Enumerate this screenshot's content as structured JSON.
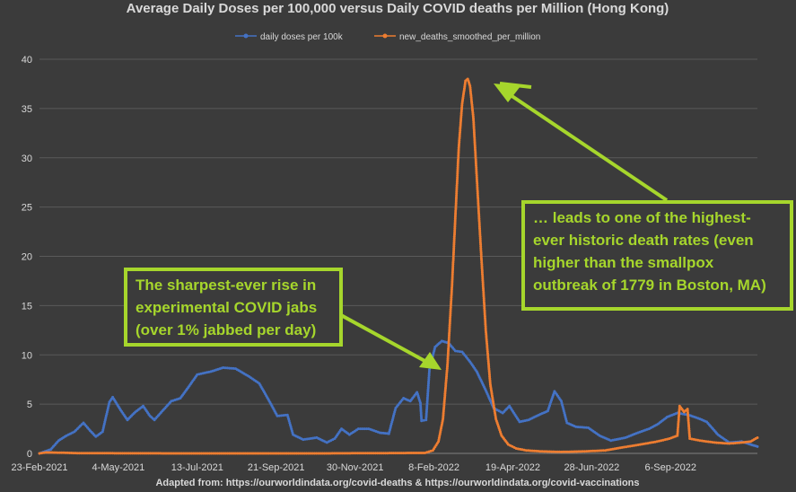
{
  "chart_data": {
    "type": "line",
    "title": "Average Daily Doses per 100,000 versus Daily COVID deaths per Million (Hong Kong)",
    "source": "Adapted from: https://ourworldindata.org/covid-deaths & https://ourworldindata.org/covid-vaccinations",
    "ylim": [
      0,
      40
    ],
    "yticks": [
      "0",
      "5",
      "10",
      "15",
      "20",
      "25",
      "30",
      "35",
      "40"
    ],
    "x_start": "2021-02-23",
    "x_end": "2022-11-22",
    "xtick_labels": [
      "23-Feb-2021",
      "4-May-2021",
      "13-Jul-2021",
      "21-Sep-2021",
      "30-Nov-2021",
      "8-Feb-2022",
      "19-Apr-2022",
      "28-Jun-2022",
      "6-Sep-2022"
    ],
    "grid": true,
    "legend_position": "top",
    "series": [
      {
        "name": "daily doses per 100k",
        "color": "#4472c4",
        "points": [
          [
            "2021-02-23",
            0.0
          ],
          [
            "2021-03-05",
            0.4
          ],
          [
            "2021-03-12",
            1.3
          ],
          [
            "2021-03-19",
            1.8
          ],
          [
            "2021-03-26",
            2.2
          ],
          [
            "2021-04-03",
            3.1
          ],
          [
            "2021-04-09",
            2.3
          ],
          [
            "2021-04-14",
            1.7
          ],
          [
            "2021-04-20",
            2.2
          ],
          [
            "2021-04-26",
            5.2
          ],
          [
            "2021-04-29",
            5.7
          ],
          [
            "2021-05-06",
            4.4
          ],
          [
            "2021-05-12",
            3.4
          ],
          [
            "2021-05-19",
            4.2
          ],
          [
            "2021-05-26",
            4.8
          ],
          [
            "2021-06-01",
            3.8
          ],
          [
            "2021-06-05",
            3.4
          ],
          [
            "2021-06-12",
            4.3
          ],
          [
            "2021-06-20",
            5.3
          ],
          [
            "2021-06-28",
            5.6
          ],
          [
            "2021-07-05",
            6.7
          ],
          [
            "2021-07-13",
            8.0
          ],
          [
            "2021-07-25",
            8.3
          ],
          [
            "2021-08-05",
            8.7
          ],
          [
            "2021-08-16",
            8.6
          ],
          [
            "2021-08-28",
            7.8
          ],
          [
            "2021-09-06",
            7.1
          ],
          [
            "2021-09-14",
            5.5
          ],
          [
            "2021-09-22",
            3.8
          ],
          [
            "2021-10-01",
            3.9
          ],
          [
            "2021-10-06",
            1.9
          ],
          [
            "2021-10-15",
            1.4
          ],
          [
            "2021-10-27",
            1.6
          ],
          [
            "2021-11-05",
            1.1
          ],
          [
            "2021-11-12",
            1.5
          ],
          [
            "2021-11-18",
            2.5
          ],
          [
            "2021-11-25",
            1.9
          ],
          [
            "2021-12-03",
            2.5
          ],
          [
            "2021-12-12",
            2.5
          ],
          [
            "2021-12-22",
            2.1
          ],
          [
            "2021-12-30",
            2.0
          ],
          [
            "2022-01-05",
            4.6
          ],
          [
            "2022-01-12",
            5.6
          ],
          [
            "2022-01-18",
            5.3
          ],
          [
            "2022-01-24",
            6.2
          ],
          [
            "2022-01-27",
            5.1
          ],
          [
            "2022-01-28",
            3.3
          ],
          [
            "2022-02-01",
            3.4
          ],
          [
            "2022-02-04",
            8.5
          ],
          [
            "2022-02-09",
            10.8
          ],
          [
            "2022-02-15",
            11.4
          ],
          [
            "2022-02-21",
            11.2
          ],
          [
            "2022-02-27",
            10.4
          ],
          [
            "2022-03-05",
            10.3
          ],
          [
            "2022-03-12",
            9.3
          ],
          [
            "2022-03-18",
            8.3
          ],
          [
            "2022-03-26",
            6.4
          ],
          [
            "2022-04-02",
            4.6
          ],
          [
            "2022-04-10",
            4.1
          ],
          [
            "2022-04-16",
            4.8
          ],
          [
            "2022-04-25",
            3.2
          ],
          [
            "2022-05-03",
            3.4
          ],
          [
            "2022-05-12",
            3.9
          ],
          [
            "2022-05-20",
            4.3
          ],
          [
            "2022-05-26",
            6.3
          ],
          [
            "2022-06-01",
            5.3
          ],
          [
            "2022-06-06",
            3.1
          ],
          [
            "2022-06-14",
            2.7
          ],
          [
            "2022-06-25",
            2.6
          ],
          [
            "2022-07-05",
            1.8
          ],
          [
            "2022-07-15",
            1.3
          ],
          [
            "2022-07-28",
            1.6
          ],
          [
            "2022-08-08",
            2.1
          ],
          [
            "2022-08-18",
            2.5
          ],
          [
            "2022-08-26",
            3.0
          ],
          [
            "2022-09-03",
            3.7
          ],
          [
            "2022-09-12",
            4.1
          ],
          [
            "2022-09-22",
            3.9
          ],
          [
            "2022-10-02",
            3.5
          ],
          [
            "2022-10-08",
            3.2
          ],
          [
            "2022-10-18",
            1.9
          ],
          [
            "2022-10-28",
            1.1
          ],
          [
            "2022-11-08",
            1.2
          ],
          [
            "2022-11-16",
            0.9
          ],
          [
            "2022-11-22",
            0.7
          ]
        ]
      },
      {
        "name": "new_deaths_smoothed_per_million",
        "color": "#ed7d31",
        "points": [
          [
            "2021-02-23",
            0.0
          ],
          [
            "2021-03-01",
            0.1
          ],
          [
            "2021-04-01",
            0.02
          ],
          [
            "2021-07-01",
            0.0
          ],
          [
            "2021-11-01",
            0.0
          ],
          [
            "2022-01-31",
            0.05
          ],
          [
            "2022-02-07",
            0.3
          ],
          [
            "2022-02-12",
            1.2
          ],
          [
            "2022-02-16",
            3.5
          ],
          [
            "2022-02-20",
            9.0
          ],
          [
            "2022-02-24",
            17.0
          ],
          [
            "2022-02-27",
            24.0
          ],
          [
            "2022-03-02",
            31.0
          ],
          [
            "2022-03-05",
            35.5
          ],
          [
            "2022-03-08",
            37.8
          ],
          [
            "2022-03-10",
            38.0
          ],
          [
            "2022-03-12",
            37.3
          ],
          [
            "2022-03-15",
            34.0
          ],
          [
            "2022-03-18",
            28.0
          ],
          [
            "2022-03-22",
            20.0
          ],
          [
            "2022-03-26",
            12.5
          ],
          [
            "2022-03-30",
            7.0
          ],
          [
            "2022-04-04",
            3.5
          ],
          [
            "2022-04-09",
            1.8
          ],
          [
            "2022-04-15",
            0.9
          ],
          [
            "2022-04-22",
            0.5
          ],
          [
            "2022-05-01",
            0.3
          ],
          [
            "2022-05-15",
            0.2
          ],
          [
            "2022-06-01",
            0.15
          ],
          [
            "2022-06-20",
            0.2
          ],
          [
            "2022-07-10",
            0.3
          ],
          [
            "2022-07-25",
            0.6
          ],
          [
            "2022-08-10",
            0.9
          ],
          [
            "2022-08-25",
            1.2
          ],
          [
            "2022-09-05",
            1.5
          ],
          [
            "2022-09-12",
            1.8
          ],
          [
            "2022-09-14",
            4.8
          ],
          [
            "2022-09-18",
            4.2
          ],
          [
            "2022-09-21",
            4.5
          ],
          [
            "2022-09-23",
            1.5
          ],
          [
            "2022-10-02",
            1.3
          ],
          [
            "2022-10-15",
            1.1
          ],
          [
            "2022-10-28",
            1.0
          ],
          [
            "2022-11-08",
            1.1
          ],
          [
            "2022-11-16",
            1.2
          ],
          [
            "2022-11-22",
            1.6
          ]
        ]
      }
    ]
  },
  "annotations": {
    "left_box": "The sharpest-ever rise in\nexperimental COVID jabs\n(over 1% jabbed per day)",
    "right_box": "… leads to one of the highest-\never historic death rates (even\nhigher than the smallpox\noutbreak of 1779 in Boston, MA)",
    "accent_color": "#a6d62c"
  }
}
